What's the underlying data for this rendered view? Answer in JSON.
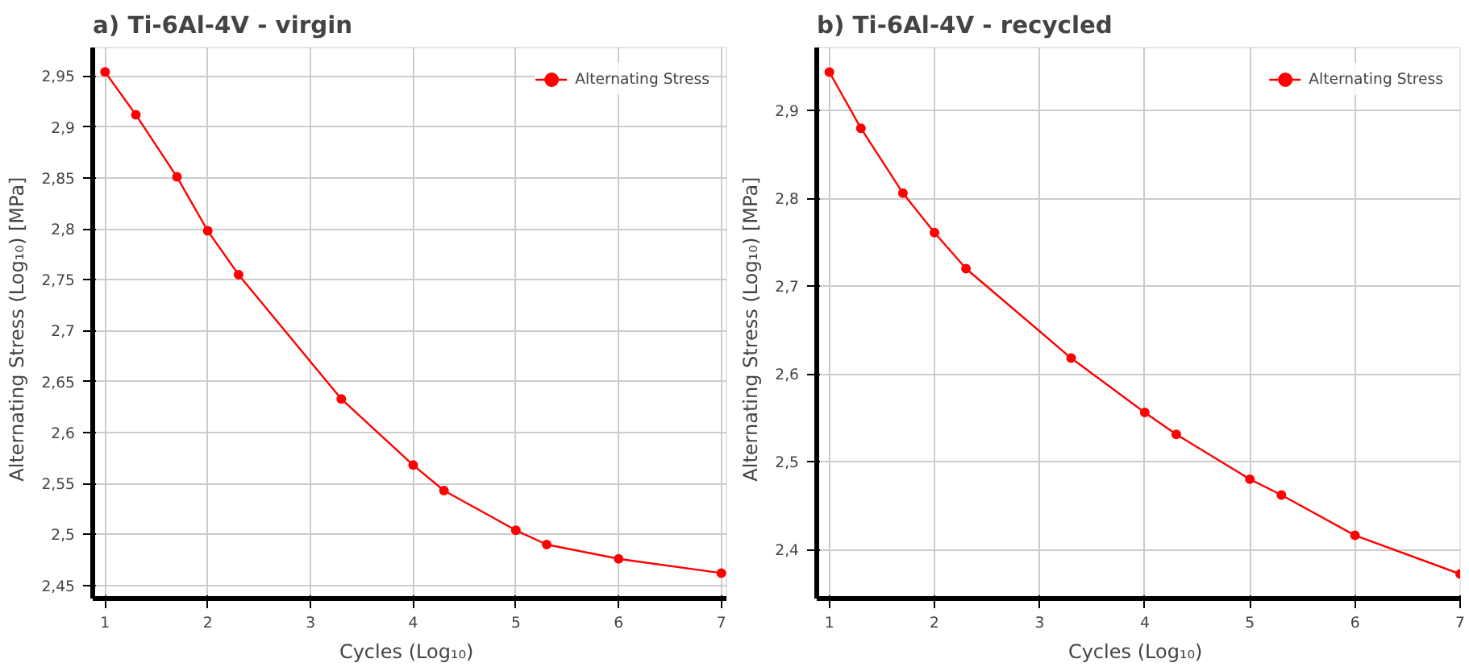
{
  "chart_data": [
    {
      "type": "line",
      "title": "a) Ti-6Al-4V - virgin",
      "xlabel": "Cycles  (Log₁₀)",
      "ylabel": "Alternating Stress  (Log₁₀)  [MPa]",
      "x": [
        1,
        1.3,
        1.7,
        2,
        2.3,
        3.3,
        4,
        4.3,
        5,
        5.3,
        6,
        7
      ],
      "series": [
        {
          "name": "Alternating Stress",
          "color": "#ff0000",
          "values": [
            2.954,
            2.912,
            2.851,
            2.798,
            2.755,
            2.633,
            2.568,
            2.543,
            2.504,
            2.49,
            2.476,
            2.462
          ]
        }
      ],
      "xlim": [
        0.88,
        7.05
      ],
      "ylim": [
        2.437,
        2.978
      ],
      "xticks": [
        1,
        2,
        3,
        4,
        5,
        6,
        7
      ],
      "yticks": [
        {
          "value": 2.45,
          "label": "2,45"
        },
        {
          "value": 2.5,
          "label": "2,5"
        },
        {
          "value": 2.55,
          "label": "2,55"
        },
        {
          "value": 2.6,
          "label": "2,6"
        },
        {
          "value": 2.65,
          "label": "2,65"
        },
        {
          "value": 2.7,
          "label": "2,7"
        },
        {
          "value": 2.75,
          "label": "2,75"
        },
        {
          "value": 2.8,
          "label": "2,8"
        },
        {
          "value": 2.85,
          "label": "2,85"
        },
        {
          "value": 2.9,
          "label": "2,9"
        },
        {
          "value": 2.95,
          "label": "2,95"
        }
      ],
      "grid": true,
      "legend": "top right",
      "marker": "circle",
      "line_style": "solid"
    },
    {
      "type": "line",
      "title": "b) Ti-6Al-4V - recycled",
      "xlabel": "Cycles  (Log₁₀)",
      "ylabel": "Alternating Stress  (Log₁₀)  [MPa]",
      "x": [
        1,
        1.3,
        1.7,
        2,
        2.3,
        3.3,
        4,
        4.3,
        5,
        5.3,
        6,
        7
      ],
      "series": [
        {
          "name": "Alternating Stress",
          "color": "#ff0000",
          "values": [
            2.944,
            2.88,
            2.806,
            2.761,
            2.72,
            2.618,
            2.556,
            2.531,
            2.48,
            2.462,
            2.416,
            2.372
          ]
        }
      ],
      "xlim": [
        0.88,
        7.0
      ],
      "ylim": [
        2.344,
        2.972
      ],
      "xticks": [
        1,
        2,
        3,
        4,
        5,
        6,
        7
      ],
      "yticks": [
        {
          "value": 2.4,
          "label": "2,4"
        },
        {
          "value": 2.5,
          "label": "2,5"
        },
        {
          "value": 2.6,
          "label": "2,6"
        },
        {
          "value": 2.7,
          "label": "2,7"
        },
        {
          "value": 2.8,
          "label": "2,8"
        },
        {
          "value": 2.9,
          "label": "2,9"
        }
      ],
      "grid": true,
      "legend": "top right",
      "marker": "circle",
      "line_style": "solid"
    }
  ]
}
